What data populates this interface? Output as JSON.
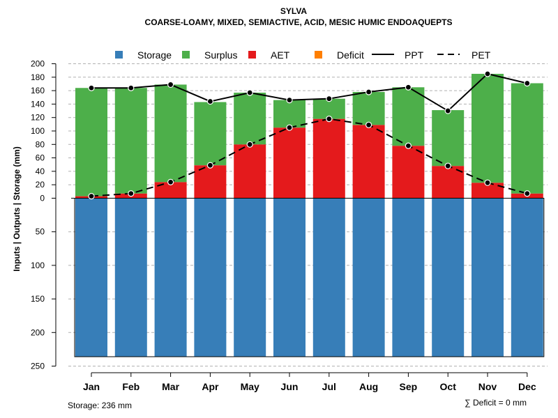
{
  "chart_data": {
    "type": "bar",
    "title": "SYLVA",
    "subtitle": "COARSE-LOAMY, MIXED, SEMIACTIVE, ACID, MESIC HUMIC ENDOAQUEPTS",
    "ylabel": "Inputs | Outputs | Storage    (mm)",
    "categories": [
      "Jan",
      "Feb",
      "Mar",
      "Apr",
      "May",
      "Jun",
      "Jul",
      "Aug",
      "Sep",
      "Oct",
      "Nov",
      "Dec"
    ],
    "upper_ylim": [
      0,
      200
    ],
    "upper_ticks": [
      0,
      20,
      40,
      60,
      80,
      100,
      120,
      140,
      160,
      180,
      200
    ],
    "lower_ylim": [
      0,
      250
    ],
    "lower_ticks": [
      50,
      100,
      150,
      200,
      250
    ],
    "grid": true,
    "legend_position": "top",
    "legend": [
      {
        "label": "Storage",
        "kind": "square",
        "color": "#377EB8"
      },
      {
        "label": "Surplus",
        "kind": "square",
        "color": "#4DAF4A"
      },
      {
        "label": "AET",
        "kind": "square",
        "color": "#E41A1C"
      },
      {
        "label": "Deficit",
        "kind": "square",
        "color": "#FF7F00"
      },
      {
        "label": "PPT",
        "kind": "solid-line",
        "color": "#000000"
      },
      {
        "label": "PET",
        "kind": "dashed-line",
        "color": "#000000"
      }
    ],
    "series": [
      {
        "name": "Storage",
        "color": "#377EB8",
        "values": [
          236,
          236,
          236,
          236,
          236,
          236,
          236,
          236,
          236,
          236,
          236,
          236
        ]
      },
      {
        "name": "AET",
        "color": "#E41A1C",
        "values": [
          3,
          7,
          24,
          49,
          80,
          105,
          118,
          109,
          78,
          48,
          23,
          7
        ]
      },
      {
        "name": "Surplus",
        "color": "#4DAF4A",
        "values": [
          161,
          157,
          145,
          94,
          77,
          41,
          30,
          49,
          87,
          83,
          162,
          164
        ]
      },
      {
        "name": "Deficit",
        "color": "#FF7F00",
        "values": [
          0,
          0,
          0,
          0,
          0,
          0,
          0,
          0,
          0,
          0,
          0,
          0
        ]
      },
      {
        "name": "PPT",
        "color": "#000000",
        "values": [
          164,
          164,
          169,
          144,
          157,
          146,
          148,
          158,
          165,
          130,
          185,
          171
        ]
      },
      {
        "name": "PET",
        "color": "#000000",
        "values": [
          3,
          7,
          24,
          49,
          80,
          105,
          118,
          109,
          78,
          48,
          23,
          7
        ]
      }
    ],
    "annotations": {
      "storage_note": "Storage: 236 mm",
      "deficit_note": "∑ Deficit = 0 mm"
    }
  }
}
